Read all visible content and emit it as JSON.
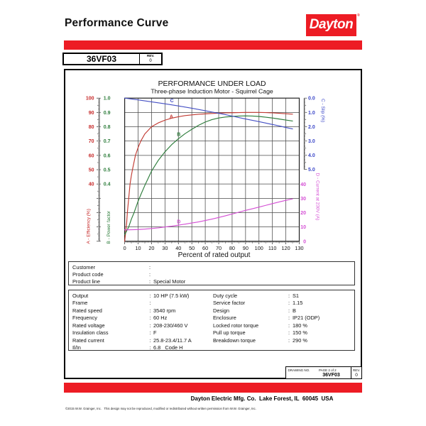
{
  "page": {
    "title": "Performance Curve",
    "brand": {
      "name": "Dayton",
      "registered": "®"
    },
    "accent_color": "#ED1C24"
  },
  "header_table": {
    "model": "36VF03",
    "rev_label": "REV.",
    "rev_value": "0"
  },
  "chart_data": {
    "type": "line",
    "title": "PERFORMANCE UNDER LOAD",
    "subtitle": "Three-phase Induction Motor - Squirrel Cage",
    "xlabel": "Percent of rated output",
    "xlim": [
      0,
      130
    ],
    "x_tick_step": 10,
    "x_ticks": [
      0,
      10,
      20,
      30,
      40,
      50,
      60,
      70,
      80,
      90,
      100,
      110,
      120,
      130
    ],
    "grid": true,
    "axes": {
      "efficiency": {
        "label": "A - Efficiency (%)",
        "color": "#c62828",
        "min": 0,
        "max": 100,
        "f_min": 1.0,
        "f_max": 0.0,
        "ticks": [
          {
            "v": 100,
            "t": "100"
          },
          {
            "v": 90,
            "t": "90"
          },
          {
            "v": 80,
            "t": "80"
          },
          {
            "v": 70,
            "t": "70"
          },
          {
            "v": 60,
            "t": "60"
          },
          {
            "v": 50,
            "t": "50"
          },
          {
            "v": 40,
            "t": "40"
          }
        ]
      },
      "power_factor": {
        "label": "B - Power factor",
        "color": "#2e7d3c",
        "min": 0,
        "max": 1.0,
        "f_min": 1.0,
        "f_max": 0.0,
        "ticks": [
          {
            "v": 1.0,
            "t": "1.0"
          },
          {
            "v": 0.9,
            "t": "0.9"
          },
          {
            "v": 0.8,
            "t": "0.8"
          },
          {
            "v": 0.7,
            "t": "0.7"
          },
          {
            "v": 0.6,
            "t": "0.6"
          },
          {
            "v": 0.5,
            "t": "0.5"
          },
          {
            "v": 0.4,
            "t": "0.4"
          }
        ]
      },
      "slip": {
        "label": "C - Slip (%)",
        "color": "#3a46c8",
        "min": 0,
        "max": 5,
        "f_min": 0.0,
        "f_max": 0.498,
        "ticks": [
          {
            "v": 0,
            "t": "0.0"
          },
          {
            "v": 1,
            "t": "1.0"
          },
          {
            "v": 2,
            "t": "2.0"
          },
          {
            "v": 3,
            "t": "3.0"
          },
          {
            "v": 4,
            "t": "4.0"
          },
          {
            "v": 5,
            "t": "5.0"
          }
        ]
      },
      "current": {
        "label": "D - Current at 230V (A)",
        "color": "#d44fd4",
        "min": 0,
        "max": 40,
        "f_min": 1.0,
        "f_max": 0.602,
        "ticks": [
          {
            "v": 40,
            "t": "40"
          },
          {
            "v": 30,
            "t": "30"
          },
          {
            "v": 20,
            "t": "20"
          },
          {
            "v": 10,
            "t": "10"
          },
          {
            "v": 0,
            "t": "0"
          }
        ]
      }
    },
    "series": [
      {
        "id": "A",
        "name": "Efficiency (%)",
        "axis": "efficiency",
        "color": "#c23b33",
        "label_at": {
          "x": 34.8,
          "v": 87.2
        },
        "points": [
          [
            0,
            0
          ],
          [
            1.5,
            13
          ],
          [
            2,
            20
          ],
          [
            3,
            30
          ],
          [
            4,
            40
          ],
          [
            5,
            46
          ],
          [
            6,
            51
          ],
          [
            8,
            60
          ],
          [
            10,
            65.5
          ],
          [
            12,
            70
          ],
          [
            15,
            75
          ],
          [
            20,
            80
          ],
          [
            25,
            82.7
          ],
          [
            30,
            84.6
          ],
          [
            35,
            86
          ],
          [
            40,
            87
          ],
          [
            45,
            87.8
          ],
          [
            50,
            88.3
          ],
          [
            55,
            88.7
          ],
          [
            60,
            89
          ],
          [
            65,
            89.3
          ],
          [
            70,
            89.5
          ],
          [
            75,
            89.7
          ],
          [
            80,
            89.8
          ],
          [
            85,
            89.9
          ],
          [
            90,
            90
          ],
          [
            95,
            90
          ],
          [
            100,
            90
          ],
          [
            105,
            89.9
          ],
          [
            110,
            89.7
          ],
          [
            115,
            89.4
          ],
          [
            120,
            89.1
          ],
          [
            125,
            88.8
          ]
        ]
      },
      {
        "id": "B",
        "name": "Power factor",
        "axis": "power_factor",
        "color": "#2e7d3c",
        "label_at": {
          "x": 40.3,
          "v": 0.748
        },
        "points": [
          [
            0,
            0.045
          ],
          [
            3,
            0.1
          ],
          [
            5,
            0.155
          ],
          [
            7,
            0.2
          ],
          [
            10,
            0.28
          ],
          [
            12,
            0.325
          ],
          [
            15,
            0.39
          ],
          [
            17.5,
            0.44
          ],
          [
            20,
            0.49
          ],
          [
            25,
            0.565
          ],
          [
            30,
            0.625
          ],
          [
            35,
            0.675
          ],
          [
            40,
            0.716
          ],
          [
            45,
            0.752
          ],
          [
            50,
            0.782
          ],
          [
            55,
            0.81
          ],
          [
            60,
            0.833
          ],
          [
            65,
            0.85
          ],
          [
            70,
            0.861
          ],
          [
            75,
            0.868
          ],
          [
            80,
            0.872
          ],
          [
            85,
            0.875
          ],
          [
            90,
            0.876
          ],
          [
            95,
            0.875
          ],
          [
            100,
            0.872
          ],
          [
            105,
            0.867
          ],
          [
            110,
            0.861
          ],
          [
            115,
            0.854
          ],
          [
            120,
            0.847
          ],
          [
            125,
            0.84
          ]
        ]
      },
      {
        "id": "C",
        "name": "Slip (%)",
        "axis": "slip",
        "color": "#4550c4",
        "label_at": {
          "x": 35.2,
          "v": 0.17
        },
        "points": [
          [
            0,
            0
          ],
          [
            5,
            0.06
          ],
          [
            10,
            0.125
          ],
          [
            15,
            0.19
          ],
          [
            20,
            0.26
          ],
          [
            25,
            0.33
          ],
          [
            30,
            0.4
          ],
          [
            35,
            0.475
          ],
          [
            40,
            0.55
          ],
          [
            45,
            0.63
          ],
          [
            50,
            0.71
          ],
          [
            55,
            0.795
          ],
          [
            60,
            0.885
          ],
          [
            65,
            0.975
          ],
          [
            70,
            1.065
          ],
          [
            75,
            1.16
          ],
          [
            80,
            1.26
          ],
          [
            85,
            1.36
          ],
          [
            90,
            1.46
          ],
          [
            95,
            1.555
          ],
          [
            100,
            1.65
          ],
          [
            105,
            1.75
          ],
          [
            110,
            1.85
          ],
          [
            115,
            1.95
          ],
          [
            120,
            2.06
          ],
          [
            125,
            2.16
          ]
        ]
      },
      {
        "id": "D",
        "name": "Current at 230V (A)",
        "axis": "current",
        "color": "#d44fd4",
        "label_at": {
          "x": 40.3,
          "v": 13.7
        },
        "points": [
          [
            0,
            8.0
          ],
          [
            5,
            8.1
          ],
          [
            10,
            8.25
          ],
          [
            15,
            8.55
          ],
          [
            20,
            8.95
          ],
          [
            25,
            9.4
          ],
          [
            30,
            10.0
          ],
          [
            35,
            10.6
          ],
          [
            40,
            11.3
          ],
          [
            45,
            12.0
          ],
          [
            50,
            12.8
          ],
          [
            55,
            13.6
          ],
          [
            60,
            14.6
          ],
          [
            65,
            15.6
          ],
          [
            70,
            16.7
          ],
          [
            75,
            17.9
          ],
          [
            80,
            19.1
          ],
          [
            85,
            20.4
          ],
          [
            90,
            21.7
          ],
          [
            95,
            22.8
          ],
          [
            100,
            24.0
          ],
          [
            105,
            25.2
          ],
          [
            110,
            26.4
          ],
          [
            115,
            27.6
          ],
          [
            120,
            28.7
          ],
          [
            125,
            29.8
          ]
        ]
      }
    ]
  },
  "customer_box": {
    "rows": [
      {
        "label": "Customer",
        "value": ""
      },
      {
        "label": "Product code",
        "value": ""
      },
      {
        "label": "Product line",
        "value": "Special Motor"
      }
    ]
  },
  "specs": {
    "left": [
      {
        "label": "Output",
        "value": "10 HP (7.5 kW)"
      },
      {
        "label": "Frame",
        "value": ""
      },
      {
        "label": "Rated speed",
        "value": "3540 rpm"
      },
      {
        "label": "Frequency",
        "value": "60 Hz"
      },
      {
        "label": "Rated voltage",
        "value": "208-230/460 V"
      },
      {
        "label": "Insulation class",
        "value": "F"
      },
      {
        "label": "Rated current",
        "value": "25.8-23.4/11.7 A"
      },
      {
        "label": "Il/In",
        "value": "6.8   Code H"
      }
    ],
    "right": [
      {
        "label": "Duty cycle",
        "value": "S1"
      },
      {
        "label": "Service factor",
        "value": "1.15"
      },
      {
        "label": "Design",
        "value": "B"
      },
      {
        "label": "Enclosure",
        "value": "IP21 (ODP)"
      },
      {
        "label": "Locked rotor torque",
        "value": "180 %"
      },
      {
        "label": "Pull up torque",
        "value": "150 %"
      },
      {
        "label": "Breakdown torque",
        "value": "290 %"
      }
    ]
  },
  "drawing_block": {
    "drawing_no_label": "DRAWING NO.",
    "page_label": "PAGE 2 of 2",
    "drawing_no": "36VF03",
    "rev_label": "REV.",
    "rev_value": "0"
  },
  "footer": {
    "company_line": "Dayton Electric Mfg. Co.  Lake Forest, IL  60045  USA",
    "copyright": "©2015 W.W. Grainger, Inc.   This design may not be reproduced, modified or redistributed without written permission from W.W. Grainger, Inc."
  }
}
